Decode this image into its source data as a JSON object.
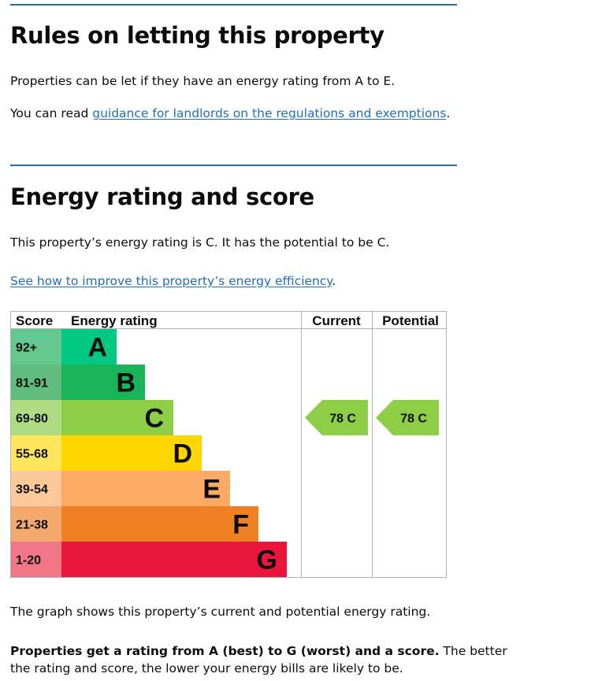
{
  "section1": {
    "heading": "Rules on letting this property",
    "p1": "Properties can be let if they have an energy rating from A to E.",
    "p2_prefix": "You can read ",
    "p2_link": "guidance for landlords on the regulations and exemptions",
    "p2_suffix": "."
  },
  "section2": {
    "heading": "Energy rating and score",
    "p1": "This property’s energy rating is C. It has the potential to be C.",
    "link": "See how to improve this property’s energy efficiency",
    "link_suffix": "."
  },
  "chart_data": {
    "type": "table",
    "headers": {
      "score": "Score",
      "rating": "Energy rating",
      "current": "Current",
      "potential": "Potential"
    },
    "bands": [
      {
        "letter": "A",
        "range": "92+",
        "color": "#00c781",
        "score_color": "#63c98f"
      },
      {
        "letter": "B",
        "range": "81-91",
        "color": "#19b459",
        "score_color": "#60bc7e"
      },
      {
        "letter": "C",
        "range": "69-80",
        "color": "#8dce46",
        "score_color": "#afdc83"
      },
      {
        "letter": "D",
        "range": "55-68",
        "color": "#ffd500",
        "score_color": "#ffe55c"
      },
      {
        "letter": "E",
        "range": "39-54",
        "color": "#fcaa65",
        "score_color": "#fdc99b"
      },
      {
        "letter": "F",
        "range": "21-38",
        "color": "#ef8023",
        "score_color": "#f4a86b"
      },
      {
        "letter": "G",
        "range": "1-20",
        "color": "#e9153b",
        "score_color": "#f07688"
      }
    ],
    "current": {
      "score": 78,
      "band": "C",
      "label": "78  C",
      "color": "#8dce46"
    },
    "potential": {
      "score": 78,
      "band": "C",
      "label": "78  C",
      "color": "#8dce46"
    }
  },
  "after": {
    "p1": "The graph shows this property’s current and potential energy rating.",
    "bold": "Properties get a rating from A (best) to G (worst) and a score.",
    "rest": " The better",
    "line2": "the rating and score, the lower your energy bills are likely to be."
  }
}
